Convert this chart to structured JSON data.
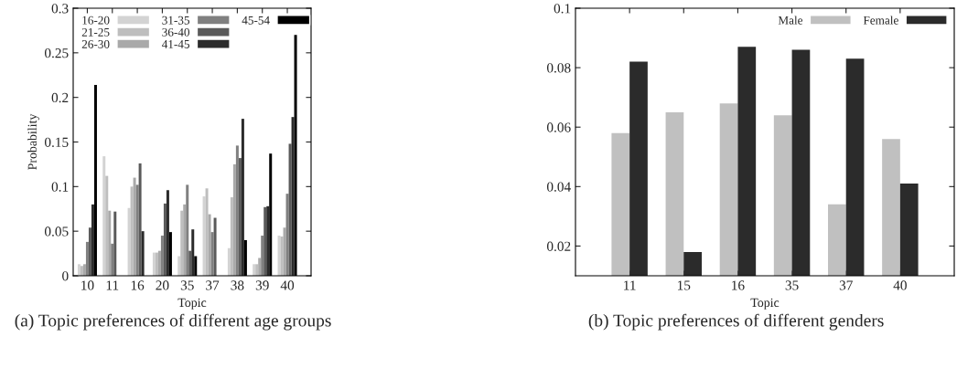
{
  "chart_data": [
    {
      "type": "bar",
      "xlabel": "Topic",
      "ylabel": "Probability",
      "categories": [
        "10",
        "11",
        "16",
        "20",
        "35",
        "37",
        "38",
        "39",
        "40"
      ],
      "ylim": [
        0,
        0.3
      ],
      "yticks": [
        0,
        0.05,
        0.1,
        0.15,
        0.2,
        0.25,
        0.3
      ],
      "legend": "top",
      "grid": false,
      "annotations": [
        "(a) Topic preferences of different age groups"
      ],
      "series": [
        {
          "name": "16-20",
          "color": "#d3d3d3",
          "values": [
            0.013,
            0.134,
            0.076,
            0.026,
            0.022,
            0.089,
            0.031,
            0.013,
            0.045
          ]
        },
        {
          "name": "21-25",
          "color": "#bebebe",
          "values": [
            0.011,
            0.112,
            0.1,
            0.026,
            0.073,
            0.098,
            0.088,
            0.013,
            0.044
          ]
        },
        {
          "name": "26-30",
          "color": "#a9a9a9",
          "values": [
            0.013,
            0.073,
            0.11,
            0.028,
            0.08,
            0.069,
            0.125,
            0.02,
            0.054
          ]
        },
        {
          "name": "31-35",
          "color": "#808080",
          "values": [
            0.038,
            0.036,
            0.102,
            0.045,
            0.102,
            0.049,
            0.146,
            0.045,
            0.092
          ]
        },
        {
          "name": "36-40",
          "color": "#5a5a5a",
          "values": [
            0.054,
            0.072,
            0.126,
            0.081,
            0.028,
            0.065,
            0.132,
            0.077,
            0.148
          ]
        },
        {
          "name": "41-45",
          "color": "#2b2b2b",
          "values": [
            0.08,
            0,
            0.05,
            0.096,
            0.052,
            0,
            0.176,
            0.078,
            0.178
          ]
        },
        {
          "name": "45-54",
          "color": "#000000",
          "values": [
            0.214,
            0,
            0,
            0.049,
            0.022,
            0,
            0.04,
            0.137,
            0.27
          ]
        }
      ]
    },
    {
      "type": "bar",
      "xlabel": "Topic",
      "categories": [
        "11",
        "15",
        "16",
        "35",
        "37",
        "40"
      ],
      "ylim": [
        0.01,
        0.1
      ],
      "yticks": [
        0.02,
        0.04,
        0.06,
        0.08,
        0.1
      ],
      "legend": "top right",
      "grid": false,
      "annotations": [
        "(b) Topic preferences of different genders"
      ],
      "series": [
        {
          "name": "Male",
          "color": "#c0c0c0",
          "values": [
            0.058,
            0.065,
            0.068,
            0.064,
            0.034,
            0.056
          ]
        },
        {
          "name": "Female",
          "color": "#2b2b2b",
          "values": [
            0.082,
            0.018,
            0.087,
            0.086,
            0.083,
            0.041
          ]
        }
      ]
    }
  ]
}
